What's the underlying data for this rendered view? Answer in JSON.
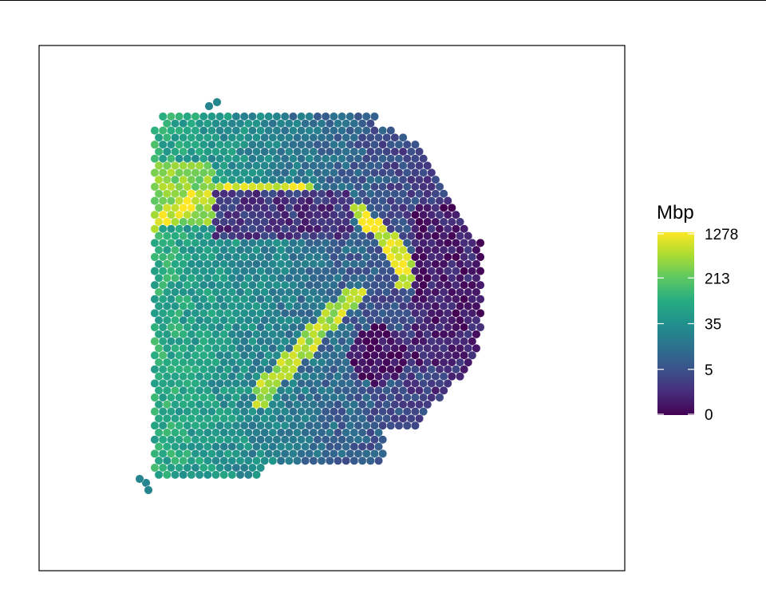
{
  "chart_data": {
    "type": "heatmap",
    "title": "",
    "xlabel": "",
    "ylabel": "",
    "legend": {
      "title": "Mbp",
      "placement": "right",
      "scale": "log",
      "breaks": [
        {
          "value": 1278,
          "label": "1278"
        },
        {
          "value": 213,
          "label": "213"
        },
        {
          "value": 35,
          "label": "35"
        },
        {
          "value": 5,
          "label": "5"
        },
        {
          "value": 0,
          "label": "0"
        }
      ],
      "range": [
        0,
        1278
      ]
    },
    "colormap": "viridis",
    "colors": {
      "low": "#440154",
      "mid": "#21908C",
      "high": "#FDE725",
      "spot_outline": "#ffffff",
      "panel_border": "#000000"
    },
    "grid": false,
    "spots": "hexagonal grid of tissue spots colored by expression (values estimated)"
  }
}
